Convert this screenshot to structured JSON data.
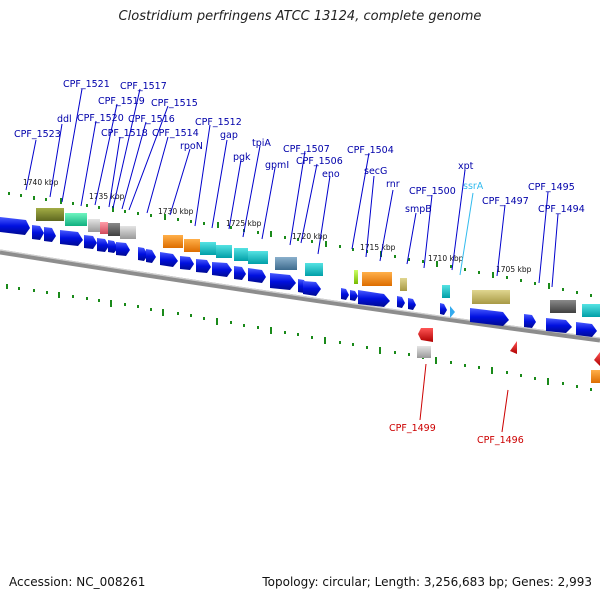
{
  "title": "Clostridium perfringens ATCC 13124, complete genome",
  "footer": {
    "accession": "Accession: NC_008261",
    "summary": "Topology: circular; Length: 3,256,683 bp; Genes: 2,993"
  },
  "kbp_ticks": [
    "1740 kbp",
    "1735 kbp",
    "1730 kbp",
    "1725 kbp",
    "1720 kbp",
    "1715 kbp",
    "1710 kbp",
    "1705 kbp"
  ],
  "gene_labels_forward": [
    "CPF_1523",
    "ddl",
    "CPF_1521",
    "CPF_1520",
    "CPF_1519",
    "CPF_1518",
    "CPF_1517",
    "CPF_1516",
    "CPF_1515",
    "CPF_1514",
    "rpoN",
    "CPF_1512",
    "gap",
    "pgk",
    "tpiA",
    "gpmI",
    "CPF_1507",
    "CPF_1506",
    "eno",
    "CPF_1504",
    "secG",
    "rnr",
    "smpB",
    "CPF_1500",
    "xpt",
    "CPF_1497",
    "CPF_1495",
    "CPF_1494"
  ],
  "gene_labels_rna": [
    "ssrA"
  ],
  "gene_labels_reverse": [
    "CPF_1499",
    "CPF_1496"
  ],
  "colors": {
    "cds": "#0000e0",
    "label_blue": "#0000aa",
    "label_red": "#cc0000",
    "label_cyan": "#33bbee",
    "tick_green": "#1a8a1a",
    "backbone": "#888888"
  }
}
